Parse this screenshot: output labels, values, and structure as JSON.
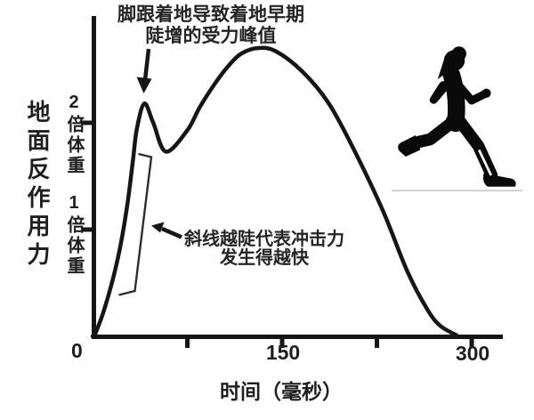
{
  "colors": {
    "ink": "#1f1f1f",
    "curve": "#161616",
    "background": "#ffffff"
  },
  "chart_data": {
    "type": "line",
    "title": "",
    "xlabel": "时间（毫秒）",
    "ylabel": "地面反作用力",
    "x_tick_labels": [
      "0",
      "150",
      "300"
    ],
    "x_tick_values_ms": [
      0,
      150,
      300
    ],
    "x_minor_tick_values_ms": [
      75,
      225
    ],
    "y_tick_labels": [
      "2倍体重",
      "1倍体重"
    ],
    "y_tick_values_bw": [
      2,
      1
    ],
    "xlim_ms": [
      0,
      325
    ],
    "ylim_bw": [
      0,
      3
    ],
    "grid": false,
    "legend": false,
    "series": [
      {
        "name": "地面反作用力",
        "x_ms": [
          0,
          2,
          10,
          20,
          27,
          32,
          35,
          41,
          48,
          58,
          75,
          85,
          97,
          108,
          118,
          131,
          145,
          166,
          187,
          208,
          230,
          249,
          265,
          275,
          288
        ],
        "y_bw": [
          0,
          0.02,
          0.28,
          0.73,
          1.19,
          1.65,
          1.94,
          2.18,
          2.0,
          1.73,
          1.93,
          2.15,
          2.37,
          2.54,
          2.65,
          2.7,
          2.67,
          2.48,
          2.18,
          1.72,
          1.17,
          0.61,
          0.25,
          0.1,
          0.01
        ]
      }
    ],
    "annotations": [
      {
        "id": "impact-peak-note",
        "lines": [
          "脚跟着地导致着地早期",
          "陡增的受力峰值"
        ]
      },
      {
        "id": "slope-note",
        "lines": [
          "斜线越陡代表冲击力",
          "发生得越快"
        ]
      }
    ]
  },
  "illustration": {
    "name": "running-woman-silhouette",
    "color": "#0a0a0a",
    "shin_highlight": "#ffffff",
    "ground_line": "#cccccc"
  }
}
